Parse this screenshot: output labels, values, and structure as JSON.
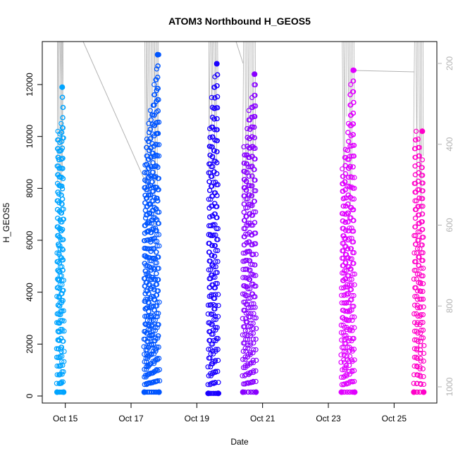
{
  "chart_data": {
    "type": "scatter",
    "title": "ATOM3 Northbound H_GEOS5",
    "xlabel": "Date",
    "ylabel": "H_GEOS5",
    "x_ticks": [
      {
        "day": 15,
        "label": "Oct 15"
      },
      {
        "day": 17,
        "label": "Oct 17"
      },
      {
        "day": 19,
        "label": "Oct 19"
      },
      {
        "day": 21,
        "label": "Oct 21"
      },
      {
        "day": 23,
        "label": "Oct 23"
      },
      {
        "day": 25,
        "label": "Oct 25"
      }
    ],
    "xlim": [
      14.3,
      26.3
    ],
    "ylim": [
      0,
      13500
    ],
    "y_ticks": [
      0,
      2000,
      4000,
      6000,
      8000,
      10000,
      12000
    ],
    "secondary_axis": {
      "side": "right",
      "color": "#b3b3b3",
      "inverted": true,
      "ticks": [
        200,
        400,
        600,
        800,
        1000
      ],
      "lim": [
        1040,
        120
      ]
    },
    "flights": [
      {
        "color": "#00a4ff",
        "x_start": 14.75,
        "x_end": 14.95,
        "y_min": 150,
        "y_max": 11900,
        "peaks": [
          10200,
          10100,
          10500,
          11900
        ]
      },
      {
        "color": "#0055ff",
        "x_start": 17.4,
        "x_end": 17.85,
        "y_min": 150,
        "y_max": 13150,
        "peaks": [
          8900,
          9900,
          10500,
          11000,
          11200,
          12000,
          12600,
          13150
        ]
      },
      {
        "color": "#1a00ff",
        "x_start": 19.35,
        "x_end": 19.65,
        "y_min": 100,
        "y_max": 12800,
        "peaks": [
          10300,
          11500,
          12300,
          12800
        ]
      },
      {
        "color": "#8800ff",
        "x_start": 20.4,
        "x_end": 20.8,
        "y_min": 150,
        "y_max": 12400,
        "peaks": [
          9600,
          10300,
          11000,
          11500,
          12400
        ]
      },
      {
        "color": "#e000ff",
        "x_start": 23.4,
        "x_end": 23.8,
        "y_min": 150,
        "y_max": 12550,
        "peaks": [
          8750,
          9500,
          10500,
          12000,
          12550
        ]
      },
      {
        "color": "#ff00c8",
        "x_start": 25.6,
        "x_end": 25.9,
        "y_min": 150,
        "y_max": 10200,
        "peaks": [
          10200,
          9900,
          9100
        ]
      }
    ],
    "connector_color": "#b3b3b3",
    "grid": false,
    "legend": "none"
  }
}
